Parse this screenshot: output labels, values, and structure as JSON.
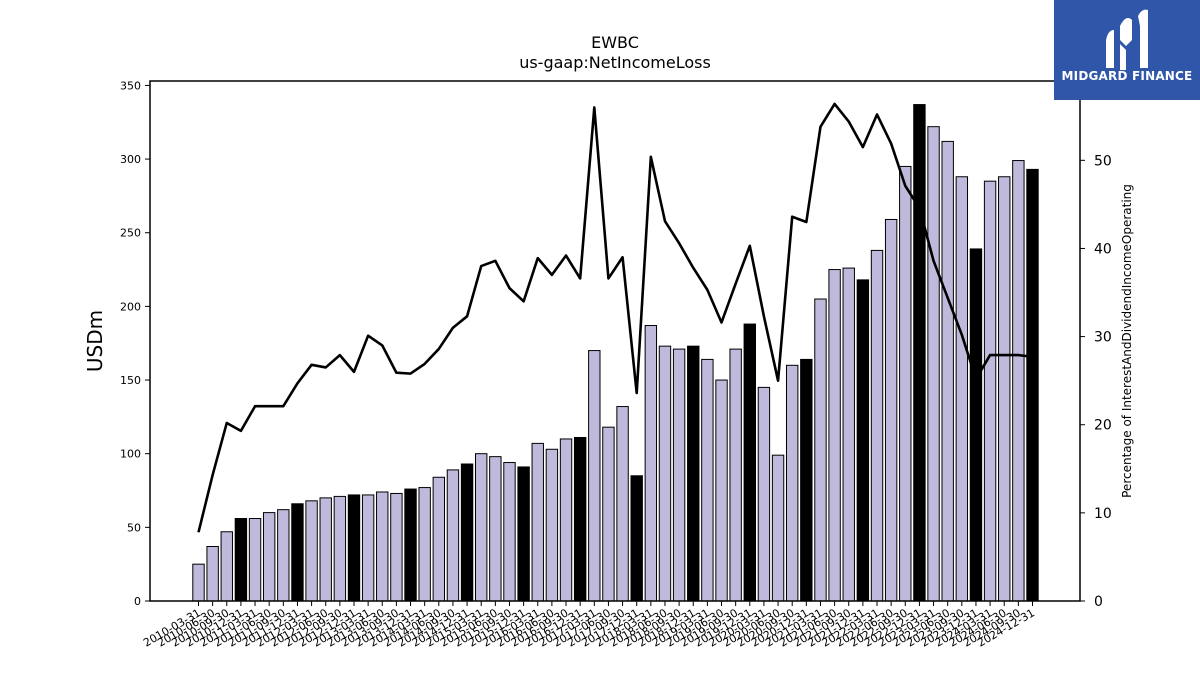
{
  "brand": {
    "name": "MIDGARD FINANCE",
    "background": "#2f56a8"
  },
  "chart_data": {
    "type": "bar",
    "title": "EWBC",
    "subtitle": "us-gaap:NetIncomeLoss",
    "ylabel": "USDm",
    "y2label": "Percentage of InterestAndDividendIncomeOperating",
    "ylim": [
      0,
      353
    ],
    "y2lim": [
      0,
      59
    ],
    "y_ticks": [
      0,
      50,
      100,
      150,
      200,
      250,
      300,
      350
    ],
    "y2_ticks": [
      0,
      10,
      20,
      30,
      40,
      50
    ],
    "bar_color_quarter": "#bfbadb",
    "bar_color_annual": "#000000",
    "line_color": "#000000",
    "categories": [
      "2010-03-31",
      "2010-06-30",
      "2010-09-30",
      "2010-12-31",
      "2011-03-31",
      "2011-06-30",
      "2011-09-30",
      "2011-12-31",
      "2012-03-31",
      "2012-06-30",
      "2012-09-30",
      "2012-12-31",
      "2013-03-31",
      "2013-06-30",
      "2013-09-30",
      "2013-12-31",
      "2014-03-31",
      "2014-06-30",
      "2014-09-30",
      "2014-12-31",
      "2015-03-31",
      "2015-06-30",
      "2015-09-30",
      "2015-12-31",
      "2016-03-31",
      "2016-06-30",
      "2016-09-30",
      "2016-12-31",
      "2017-03-31",
      "2017-06-30",
      "2017-09-30",
      "2017-12-31",
      "2018-03-31",
      "2018-06-30",
      "2018-09-30",
      "2018-12-31",
      "2019-03-31",
      "2019-06-30",
      "2019-09-30",
      "2019-12-31",
      "2020-03-31",
      "2020-06-30",
      "2020-09-30",
      "2020-12-31",
      "2021-03-31",
      "2021-06-30",
      "2021-09-30",
      "2021-12-31",
      "2022-03-31",
      "2022-06-30",
      "2022-09-30",
      "2022-12-31",
      "2023-03-31",
      "2023-06-30",
      "2023-09-30",
      "2023-12-31",
      "2024-03-31",
      "2024-06-30",
      "2024-09-30",
      "2024-12-31"
    ],
    "series": [
      {
        "kind": "bar",
        "values": [
          25,
          37,
          47,
          56,
          56,
          60,
          62,
          66,
          68,
          70,
          71,
          72,
          72,
          74,
          73,
          76,
          77,
          84,
          89,
          93,
          100,
          98,
          94,
          91,
          107,
          103,
          110,
          111,
          170,
          118,
          132,
          85,
          187,
          173,
          171,
          173,
          164,
          150,
          171,
          188,
          145,
          99,
          160,
          164,
          205,
          225,
          226,
          218,
          238,
          259,
          295,
          337,
          322,
          312,
          288,
          239,
          285,
          288,
          299,
          293
        ],
        "annual": [
          false,
          false,
          false,
          true,
          false,
          false,
          false,
          true,
          false,
          false,
          false,
          true,
          false,
          false,
          false,
          true,
          false,
          false,
          false,
          true,
          false,
          false,
          false,
          true,
          false,
          false,
          false,
          true,
          false,
          false,
          false,
          true,
          false,
          false,
          false,
          true,
          false,
          false,
          false,
          true,
          false,
          false,
          false,
          true,
          false,
          false,
          false,
          true,
          false,
          false,
          false,
          true,
          false,
          false,
          false,
          true,
          false,
          false,
          false,
          true
        ]
      },
      {
        "kind": "line",
        "axis": "right",
        "values": [
          7.8,
          14.3,
          20.2,
          19.3,
          22.1,
          22.1,
          22.1,
          24.7,
          26.8,
          26.5,
          27.9,
          26.0,
          30.1,
          29.0,
          25.9,
          25.8,
          26.9,
          28.6,
          31.0,
          32.3,
          38.0,
          38.6,
          35.5,
          34.0,
          38.9,
          37.0,
          39.2,
          36.6,
          56.0,
          36.6,
          39.0,
          23.6,
          50.4,
          43.1,
          40.6,
          37.8,
          35.3,
          31.6,
          36.0,
          40.3,
          32.3,
          25.0,
          43.6,
          43.0,
          53.8,
          56.4,
          54.4,
          51.5,
          55.2,
          51.9,
          47.1,
          44.6,
          38.6,
          34.4,
          30.2,
          25.2,
          27.9,
          27.9,
          27.9,
          27.7
        ]
      }
    ]
  }
}
